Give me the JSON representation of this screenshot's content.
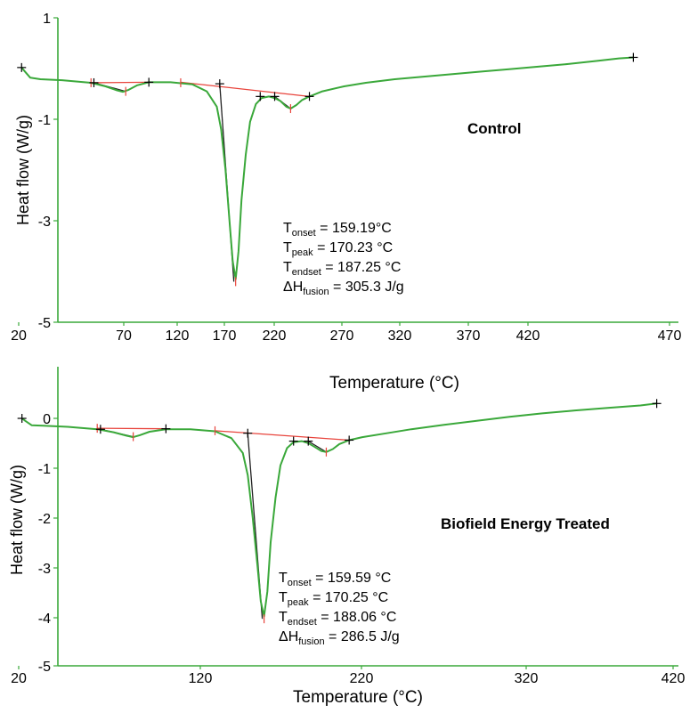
{
  "chart_data": [
    {
      "type": "line",
      "title": "Control",
      "xlabel": "Temperature (°C)",
      "ylabel": "Heat flow (W/g)",
      "xlim": [
        20,
        470
      ],
      "ylim": [
        -5,
        1
      ],
      "xticks": [
        "20",
        "70",
        "120",
        "170",
        "220",
        "270",
        "320",
        "370",
        "420",
        "470"
      ],
      "yticks": [
        "1",
        "-1",
        "-3",
        "-5"
      ],
      "grid": false,
      "colors": {
        "curve": "#3aa83a",
        "baseline": "#e8443c",
        "marker": "#000000",
        "axis": "#3aa83a"
      },
      "series": [
        {
          "x": [
            22,
            24,
            28,
            35,
            50,
            70,
            80,
            88,
            92,
            96,
            102,
            110,
            125,
            140,
            150,
            157,
            160,
            163,
            166,
            168,
            170,
            172,
            174,
            177,
            180,
            184,
            188,
            193,
            197,
            201,
            205,
            208,
            212,
            216,
            221,
            230,
            245,
            260,
            280,
            300,
            320,
            340,
            360,
            380,
            400,
            420,
            435,
            445
          ],
          "y": [
            0.02,
            -0.05,
            -0.18,
            -0.21,
            -0.23,
            -0.28,
            -0.35,
            -0.43,
            -0.46,
            -0.42,
            -0.33,
            -0.27,
            -0.27,
            -0.31,
            -0.45,
            -0.75,
            -1.2,
            -2.0,
            -3.1,
            -3.8,
            -4.15,
            -3.6,
            -2.6,
            -1.7,
            -1.05,
            -0.7,
            -0.58,
            -0.55,
            -0.58,
            -0.64,
            -0.75,
            -0.79,
            -0.72,
            -0.62,
            -0.55,
            -0.45,
            -0.35,
            -0.28,
            -0.21,
            -0.16,
            -0.11,
            -0.06,
            -0.01,
            0.04,
            0.09,
            0.15,
            0.2,
            0.22
          ]
        }
      ],
      "baselines": [
        {
          "x": [
            70,
            110
          ],
          "y": [
            -0.28,
            -0.27
          ]
        },
        {
          "x": [
            132,
            221
          ],
          "y": [
            -0.27,
            -0.55
          ]
        }
      ],
      "markers": [
        {
          "x": 22,
          "y": 0.02,
          "color": "black"
        },
        {
          "x": 70,
          "y": -0.28,
          "color": "red"
        },
        {
          "x": 72,
          "y": -0.28,
          "color": "black"
        },
        {
          "x": 94,
          "y": -0.45,
          "color": "red"
        },
        {
          "x": 110,
          "y": -0.27,
          "color": "black"
        },
        {
          "x": 132,
          "y": -0.28,
          "color": "red"
        },
        {
          "x": 159,
          "y": -0.3,
          "color": "black"
        },
        {
          "x": 170,
          "y": -4.2,
          "color": "red"
        },
        {
          "x": 187,
          "y": -0.55,
          "color": "black"
        },
        {
          "x": 197,
          "y": -0.55,
          "color": "black"
        },
        {
          "x": 208,
          "y": -0.79,
          "color": "red"
        },
        {
          "x": 221,
          "y": -0.55,
          "color": "black"
        },
        {
          "x": 445,
          "y": 0.22,
          "color": "black"
        }
      ],
      "annotations": [
        {
          "label": "T",
          "sub": "onset",
          "value": " = 159.19°C"
        },
        {
          "label": "T",
          "sub": "peak",
          "value": " = 170.23 °C"
        },
        {
          "label": "T",
          "sub": "endset",
          "value": " = 187.25 °C"
        },
        {
          "label": "ΔH",
          "sub": "fusion",
          "value": " = 305.3 J/g"
        }
      ]
    },
    {
      "type": "line",
      "title": "Biofield Energy Treated",
      "xlabel": "Temperature (°C)",
      "ylabel": "Heat flow (W/g)",
      "xlim": [
        20,
        440
      ],
      "ylim": [
        -5,
        1
      ],
      "xticks": [
        "20",
        "120",
        "220",
        "320",
        "420"
      ],
      "yticks": [
        "0",
        "-1",
        "-2",
        "-3",
        "-4",
        "-5"
      ],
      "grid": false,
      "colors": {
        "curve": "#3aa83a",
        "baseline": "#e8443c",
        "marker": "#000000",
        "axis": "#3aa83a"
      },
      "series": [
        {
          "x": [
            22,
            24,
            28,
            35,
            50,
            68,
            78,
            86,
            90,
            94,
            100,
            110,
            125,
            140,
            150,
            157,
            160,
            163,
            166,
            168,
            170,
            172,
            174,
            177,
            180,
            184,
            188,
            193,
            197,
            201,
            205,
            208,
            212,
            216,
            222,
            230,
            245,
            260,
            280,
            300,
            320,
            340,
            360,
            380,
            400,
            410
          ],
          "y": [
            0.0,
            -0.05,
            -0.14,
            -0.15,
            -0.17,
            -0.22,
            -0.28,
            -0.35,
            -0.38,
            -0.34,
            -0.27,
            -0.22,
            -0.22,
            -0.26,
            -0.4,
            -0.7,
            -1.15,
            -2.0,
            -3.0,
            -3.7,
            -4.0,
            -3.5,
            -2.5,
            -1.6,
            -0.95,
            -0.6,
            -0.48,
            -0.46,
            -0.5,
            -0.58,
            -0.66,
            -0.68,
            -0.62,
            -0.52,
            -0.44,
            -0.38,
            -0.3,
            -0.22,
            -0.13,
            -0.05,
            0.03,
            0.1,
            0.16,
            0.21,
            0.26,
            0.3
          ]
        }
      ],
      "baselines": [
        {
          "x": [
            68,
            110
          ],
          "y": [
            -0.2,
            -0.21
          ]
        },
        {
          "x": [
            140,
            222
          ],
          "y": [
            -0.25,
            -0.44
          ]
        }
      ],
      "markers": [
        {
          "x": 22,
          "y": 0.0,
          "color": "black"
        },
        {
          "x": 68,
          "y": -0.2,
          "color": "red"
        },
        {
          "x": 70,
          "y": -0.22,
          "color": "black"
        },
        {
          "x": 90,
          "y": -0.37,
          "color": "red"
        },
        {
          "x": 110,
          "y": -0.21,
          "color": "black"
        },
        {
          "x": 140,
          "y": -0.25,
          "color": "red"
        },
        {
          "x": 160,
          "y": -0.3,
          "color": "black"
        },
        {
          "x": 170,
          "y": -4.05,
          "color": "red"
        },
        {
          "x": 188,
          "y": -0.46,
          "color": "black"
        },
        {
          "x": 197,
          "y": -0.46,
          "color": "black"
        },
        {
          "x": 208,
          "y": -0.68,
          "color": "red"
        },
        {
          "x": 222,
          "y": -0.44,
          "color": "black"
        },
        {
          "x": 410,
          "y": 0.3,
          "color": "black"
        }
      ],
      "annotations": [
        {
          "label": "T",
          "sub": "onset",
          "value": " = 159.59 °C"
        },
        {
          "label": "T",
          "sub": "peak",
          "value": " = 170.25 °C"
        },
        {
          "label": "T",
          "sub": "endset",
          "value": " = 188.06 °C"
        },
        {
          "label": "ΔH",
          "sub": "fusion",
          "value": " = 286.5 J/g"
        }
      ]
    }
  ]
}
